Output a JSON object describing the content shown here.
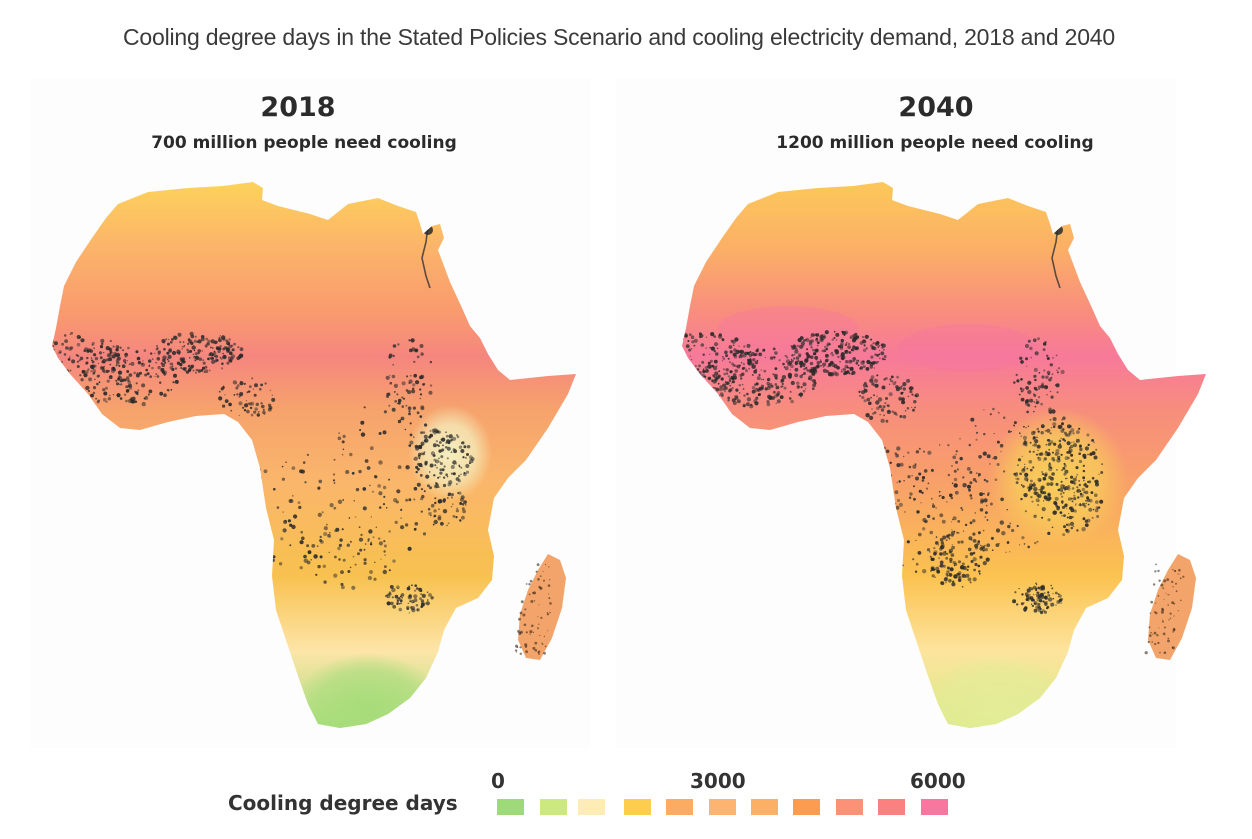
{
  "title": "Cooling degree days in the Stated Policies Scenario and cooling electricity demand, 2018 and 2040",
  "panels": [
    {
      "year": "2018",
      "subtitle": "700 million people need cooling",
      "palette_stops": [
        "#fdd25a",
        "#fbb46a",
        "#f99a6e",
        "#f5867f",
        "#f6a36c",
        "#fab66b",
        "#f8c14f",
        "#fde5a8",
        "#a8de7c"
      ]
    },
    {
      "year": "2040",
      "subtitle": "1200 million people need cooling",
      "palette_stops": [
        "#fcc85a",
        "#fbb066",
        "#f88d7e",
        "#f7799a",
        "#f78e7c",
        "#f8a069",
        "#fbc24f",
        "#fde49e",
        "#d6ea84"
      ]
    }
  ],
  "legend": {
    "label": "Cooling degree days",
    "ticks": [
      "0",
      "3000",
      "6000"
    ],
    "swatches": [
      "#9ed97a",
      "#cce980",
      "#fdecb6",
      "#fdcd4d",
      "#fcac62",
      "#fcb470",
      "#fcb065",
      "#fc9c50",
      "#fb9278",
      "#fa8180",
      "#f7779e"
    ]
  }
}
